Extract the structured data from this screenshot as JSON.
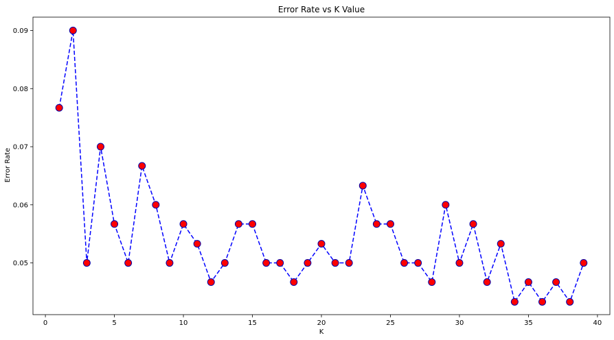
{
  "chart_data": {
    "type": "line",
    "title": "Error Rate vs K Value",
    "xlabel": "K",
    "ylabel": "Error Rate",
    "xlim": [
      -0.9,
      40.9
    ],
    "ylim": [
      0.0411,
      0.0923
    ],
    "xticks": [
      0,
      5,
      10,
      15,
      20,
      25,
      30,
      35,
      40
    ],
    "yticks": [
      0.05,
      0.06,
      0.07,
      0.08,
      0.09
    ],
    "ytick_labels": [
      "0.05",
      "0.06",
      "0.07",
      "0.08",
      "0.09"
    ],
    "grid": false,
    "line_color": "#0000ff",
    "line_style": "dashed",
    "marker_face": "#ff0000",
    "marker_edge": "#0000aa",
    "series": [
      {
        "x": [
          1,
          2,
          3,
          4,
          5,
          6,
          7,
          8,
          9,
          10,
          11,
          12,
          13,
          14,
          15,
          16,
          17,
          18,
          19,
          20,
          21,
          22,
          23,
          24,
          25,
          26,
          27,
          28,
          29,
          30,
          31,
          32,
          33,
          34,
          35,
          36,
          37,
          38,
          39
        ],
        "values": [
          0.0767,
          0.09,
          0.05,
          0.07,
          0.0567,
          0.05,
          0.0667,
          0.06,
          0.05,
          0.0567,
          0.0533,
          0.0467,
          0.05,
          0.0567,
          0.0567,
          0.05,
          0.05,
          0.0467,
          0.05,
          0.0533,
          0.05,
          0.05,
          0.0633,
          0.0567,
          0.0567,
          0.05,
          0.05,
          0.0467,
          0.06,
          0.05,
          0.0567,
          0.0467,
          0.0533,
          0.0433,
          0.0467,
          0.0433,
          0.0467,
          0.0433,
          0.05
        ]
      }
    ]
  }
}
